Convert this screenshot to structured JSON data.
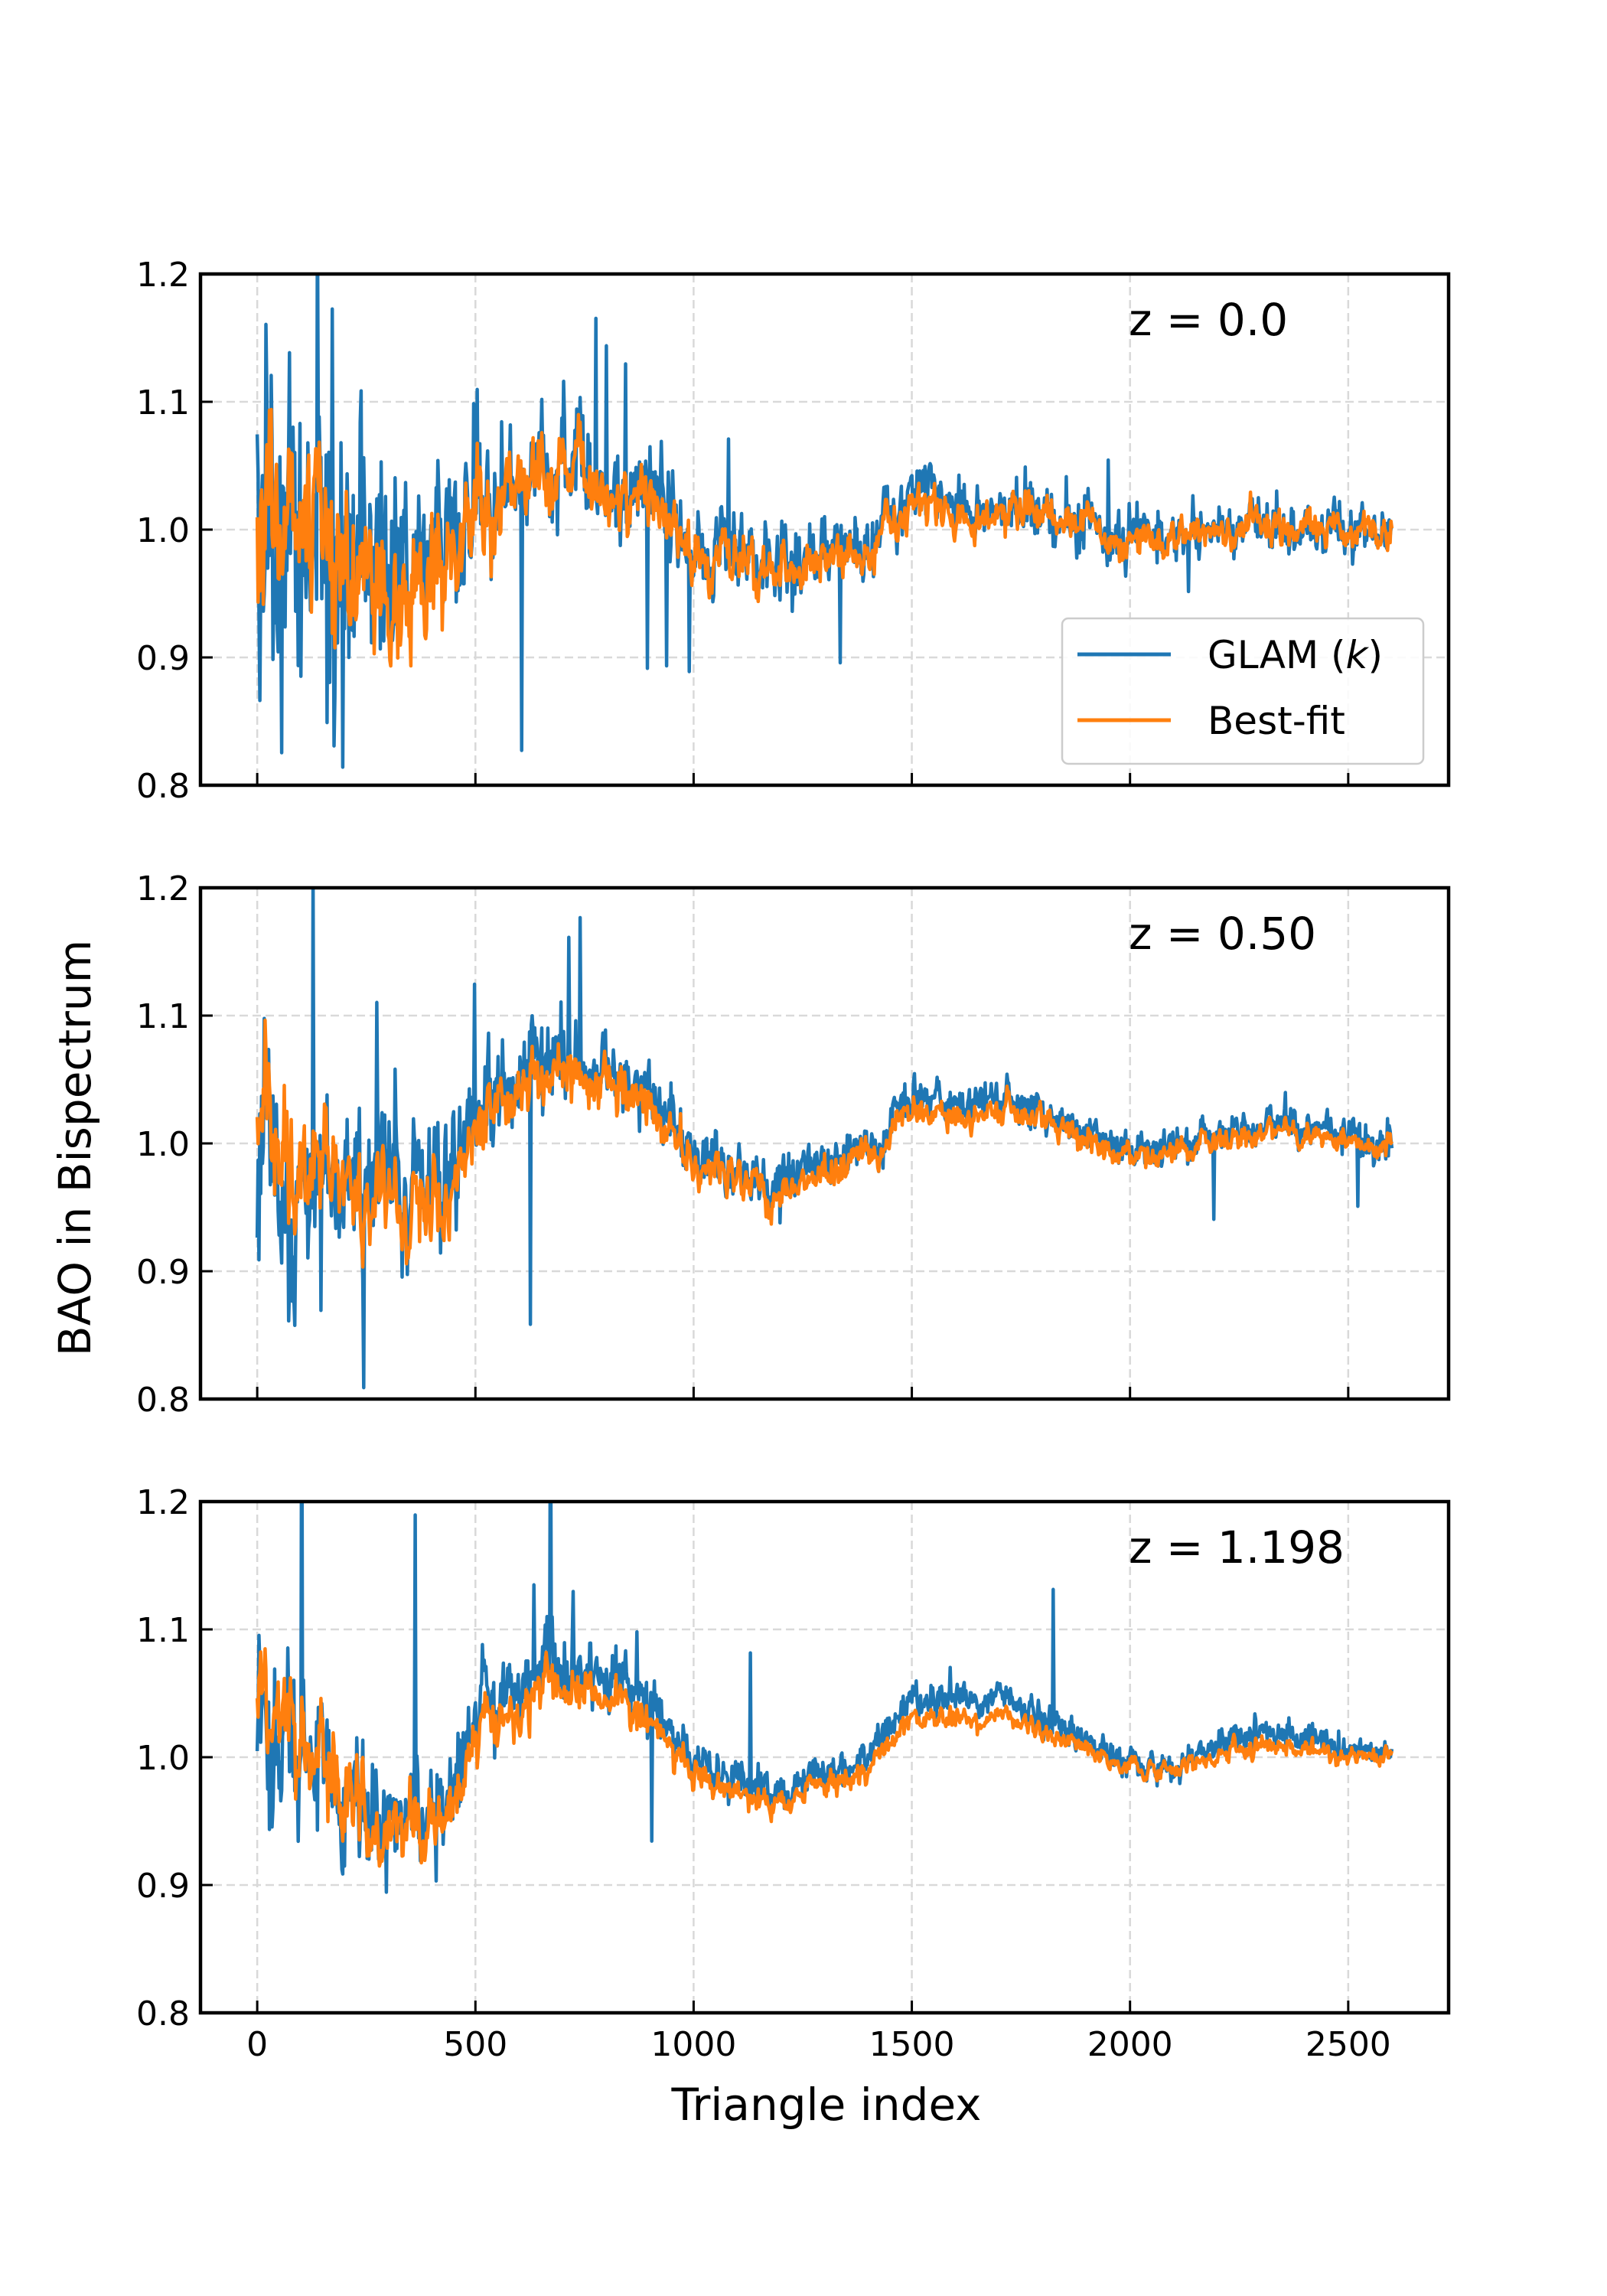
{
  "chart_data": {
    "type": "line",
    "xlabel": "Triangle index",
    "ylabel": "BAO in Bispectrum",
    "xlim": [
      -130,
      2730
    ],
    "ylim": [
      0.8,
      1.2
    ],
    "xticks": [
      0,
      500,
      1000,
      1500,
      2000,
      2500
    ],
    "yticks": [
      0.8,
      0.9,
      1.0,
      1.1,
      1.2
    ],
    "xtick_labels": [
      "0",
      "500",
      "1000",
      "1500",
      "2000",
      "2500"
    ],
    "ytick_labels": [
      "0.8",
      "0.9",
      "1.0",
      "1.1",
      "1.2"
    ],
    "grid": true,
    "legend": {
      "location": "lower-right",
      "entries": [
        {
          "pre": "GLAM (",
          "italic": "k",
          "post": ")",
          "color": "#1f77b4"
        },
        {
          "pre": "Best-fit",
          "italic": "",
          "post": "",
          "color": "#ff7f0e"
        }
      ]
    },
    "series_style": [
      {
        "key": "glam",
        "color": "#1f77b4"
      },
      {
        "key": "bestfit",
        "color": "#ff7f0e"
      }
    ],
    "x_range": [
      0,
      2600
    ],
    "panels": [
      {
        "label": "z = 0.0",
        "glam_trend": [
          [
            0,
            1.0
          ],
          [
            150,
            0.975
          ],
          [
            300,
            0.965
          ],
          [
            450,
            0.985
          ],
          [
            520,
            1.03
          ],
          [
            600,
            1.04
          ],
          [
            700,
            1.055
          ],
          [
            800,
            1.045
          ],
          [
            900,
            1.02
          ],
          [
            1000,
            0.985
          ],
          [
            1100,
            0.975
          ],
          [
            1200,
            0.97
          ],
          [
            1300,
            0.98
          ],
          [
            1400,
            0.99
          ],
          [
            1500,
            1.03
          ],
          [
            1600,
            1.02
          ],
          [
            1700,
            1.02
          ],
          [
            1800,
            1.01
          ],
          [
            1900,
            1.0
          ],
          [
            2000,
            0.995
          ],
          [
            2100,
            0.995
          ],
          [
            2200,
            1.0
          ],
          [
            2300,
            1.005
          ],
          [
            2400,
            1.0
          ],
          [
            2500,
            1.0
          ],
          [
            2600,
            1.0
          ]
        ],
        "bestfit_trend": [
          [
            0,
            1.02
          ],
          [
            150,
            0.985
          ],
          [
            300,
            0.94
          ],
          [
            450,
            0.965
          ],
          [
            520,
            1.025
          ],
          [
            600,
            1.035
          ],
          [
            700,
            1.05
          ],
          [
            800,
            1.04
          ],
          [
            900,
            1.015
          ],
          [
            1000,
            0.98
          ],
          [
            1100,
            0.97
          ],
          [
            1200,
            0.965
          ],
          [
            1300,
            0.975
          ],
          [
            1400,
            0.985
          ],
          [
            1500,
            1.02
          ],
          [
            1600,
            1.01
          ],
          [
            1700,
            1.015
          ],
          [
            1800,
            1.01
          ],
          [
            1900,
            1.0
          ],
          [
            2000,
            0.99
          ],
          [
            2100,
            0.995
          ],
          [
            2200,
            1.0
          ],
          [
            2300,
            1.005
          ],
          [
            2400,
            1.0
          ],
          [
            2500,
            1.0
          ],
          [
            2600,
            1.0
          ]
        ]
      },
      {
        "label": "z = 0.50",
        "glam_trend": [
          [
            0,
            1.0
          ],
          [
            150,
            0.975
          ],
          [
            300,
            0.96
          ],
          [
            450,
            0.985
          ],
          [
            520,
            1.035
          ],
          [
            600,
            1.045
          ],
          [
            700,
            1.065
          ],
          [
            800,
            1.055
          ],
          [
            900,
            1.035
          ],
          [
            1000,
            0.99
          ],
          [
            1100,
            0.98
          ],
          [
            1200,
            0.97
          ],
          [
            1300,
            0.985
          ],
          [
            1400,
            0.995
          ],
          [
            1500,
            1.035
          ],
          [
            1600,
            1.035
          ],
          [
            1700,
            1.035
          ],
          [
            1800,
            1.025
          ],
          [
            1900,
            1.01
          ],
          [
            2000,
            0.995
          ],
          [
            2100,
            0.995
          ],
          [
            2200,
            1.005
          ],
          [
            2300,
            1.015
          ],
          [
            2400,
            1.01
          ],
          [
            2500,
            1.005
          ],
          [
            2600,
            1.0
          ]
        ],
        "bestfit_trend": [
          [
            0,
            1.03
          ],
          [
            150,
            0.985
          ],
          [
            300,
            0.94
          ],
          [
            450,
            0.965
          ],
          [
            520,
            1.025
          ],
          [
            600,
            1.035
          ],
          [
            700,
            1.055
          ],
          [
            800,
            1.045
          ],
          [
            900,
            1.025
          ],
          [
            1000,
            0.985
          ],
          [
            1100,
            0.975
          ],
          [
            1200,
            0.96
          ],
          [
            1300,
            0.975
          ],
          [
            1400,
            0.99
          ],
          [
            1500,
            1.025
          ],
          [
            1600,
            1.025
          ],
          [
            1700,
            1.025
          ],
          [
            1800,
            1.02
          ],
          [
            1900,
            1.005
          ],
          [
            2000,
            0.99
          ],
          [
            2100,
            0.99
          ],
          [
            2200,
            1.0
          ],
          [
            2300,
            1.01
          ],
          [
            2400,
            1.005
          ],
          [
            2500,
            1.0
          ],
          [
            2600,
            1.0
          ]
        ]
      },
      {
        "label": "z = 1.198",
        "glam_trend": [
          [
            0,
            1.03
          ],
          [
            150,
            0.985
          ],
          [
            300,
            0.955
          ],
          [
            450,
            0.98
          ],
          [
            520,
            1.04
          ],
          [
            600,
            1.05
          ],
          [
            700,
            1.075
          ],
          [
            800,
            1.065
          ],
          [
            900,
            1.045
          ],
          [
            1000,
            0.995
          ],
          [
            1100,
            0.985
          ],
          [
            1200,
            0.975
          ],
          [
            1300,
            0.99
          ],
          [
            1400,
            1.0
          ],
          [
            1500,
            1.045
          ],
          [
            1600,
            1.045
          ],
          [
            1700,
            1.045
          ],
          [
            1800,
            1.03
          ],
          [
            1900,
            1.01
          ],
          [
            2000,
            0.995
          ],
          [
            2100,
            0.99
          ],
          [
            2200,
            1.01
          ],
          [
            2300,
            1.02
          ],
          [
            2400,
            1.015
          ],
          [
            2500,
            1.005
          ],
          [
            2600,
            1.0
          ]
        ],
        "bestfit_trend": [
          [
            0,
            1.05
          ],
          [
            150,
            0.99
          ],
          [
            300,
            0.94
          ],
          [
            450,
            0.965
          ],
          [
            520,
            1.025
          ],
          [
            600,
            1.035
          ],
          [
            700,
            1.06
          ],
          [
            800,
            1.05
          ],
          [
            900,
            1.03
          ],
          [
            1000,
            0.985
          ],
          [
            1100,
            0.975
          ],
          [
            1200,
            0.965
          ],
          [
            1300,
            0.98
          ],
          [
            1400,
            0.99
          ],
          [
            1500,
            1.03
          ],
          [
            1600,
            1.03
          ],
          [
            1700,
            1.03
          ],
          [
            1800,
            1.02
          ],
          [
            1900,
            1.005
          ],
          [
            2000,
            0.99
          ],
          [
            2100,
            0.99
          ],
          [
            2200,
            1.0
          ],
          [
            2300,
            1.01
          ],
          [
            2400,
            1.005
          ],
          [
            2500,
            1.0
          ],
          [
            2600,
            1.0
          ]
        ]
      }
    ]
  }
}
